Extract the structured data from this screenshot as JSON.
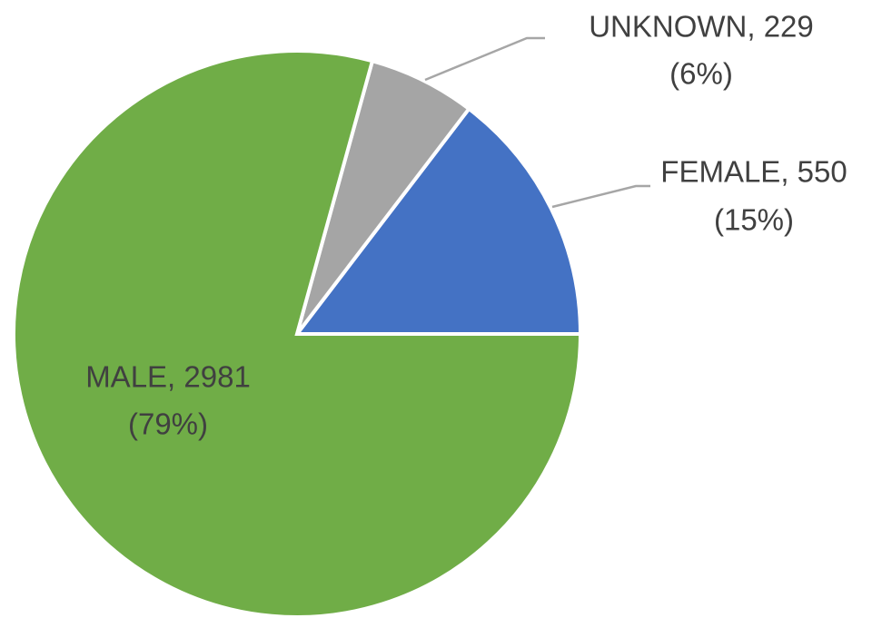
{
  "chart_data": {
    "type": "pie",
    "categories": [
      "FEMALE",
      "UNKNOWN",
      "MALE"
    ],
    "values": [
      550,
      229,
      2981
    ],
    "value_labels": [
      "FEMALE, 550",
      "UNKNOWN, 229",
      "MALE, 2981"
    ],
    "percent_labels": [
      "(15%)",
      "(6%)",
      "(79%)"
    ],
    "colors": [
      "#4472c4",
      "#a5a5a5",
      "#70ad47"
    ]
  }
}
